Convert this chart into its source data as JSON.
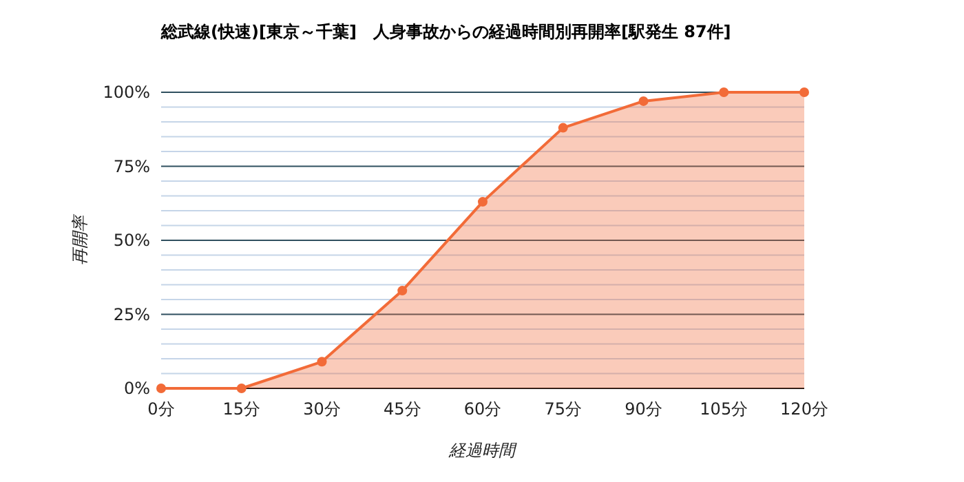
{
  "chart_data": {
    "type": "area",
    "title": "総武線(快速)[東京～千葉]　人身事故からの経過時間別再開率[駅発生 87件]",
    "xlabel": "経過時間",
    "ylabel": "再開率",
    "categories": [
      "0分",
      "15分",
      "30分",
      "45分",
      "60分",
      "75分",
      "90分",
      "105分",
      "120分"
    ],
    "series": [
      {
        "color": "#f26b38",
        "values": [
          0,
          0,
          9,
          33,
          63,
          88,
          97,
          100,
          100
        ]
      }
    ],
    "ylim": [
      0,
      100
    ],
    "yticks": [
      {
        "value": 0,
        "label": "0%"
      },
      {
        "value": 5,
        "label": null
      },
      {
        "value": 10,
        "label": null
      },
      {
        "value": 15,
        "label": null
      },
      {
        "value": 20,
        "label": null
      },
      {
        "value": 25,
        "label": "25%"
      },
      {
        "value": 30,
        "label": null
      },
      {
        "value": 35,
        "label": null
      },
      {
        "value": 40,
        "label": null
      },
      {
        "value": 45,
        "label": null
      },
      {
        "value": 50,
        "label": "50%"
      },
      {
        "value": 55,
        "label": null
      },
      {
        "value": 60,
        "label": null
      },
      {
        "value": 65,
        "label": null
      },
      {
        "value": 70,
        "label": null
      },
      {
        "value": 75,
        "label": "75%"
      },
      {
        "value": 80,
        "label": null
      },
      {
        "value": 85,
        "label": null
      },
      {
        "value": 90,
        "label": null
      },
      {
        "value": 95,
        "label": null
      },
      {
        "value": 100,
        "label": "100%"
      }
    ],
    "grid": true,
    "marker": "circle"
  }
}
